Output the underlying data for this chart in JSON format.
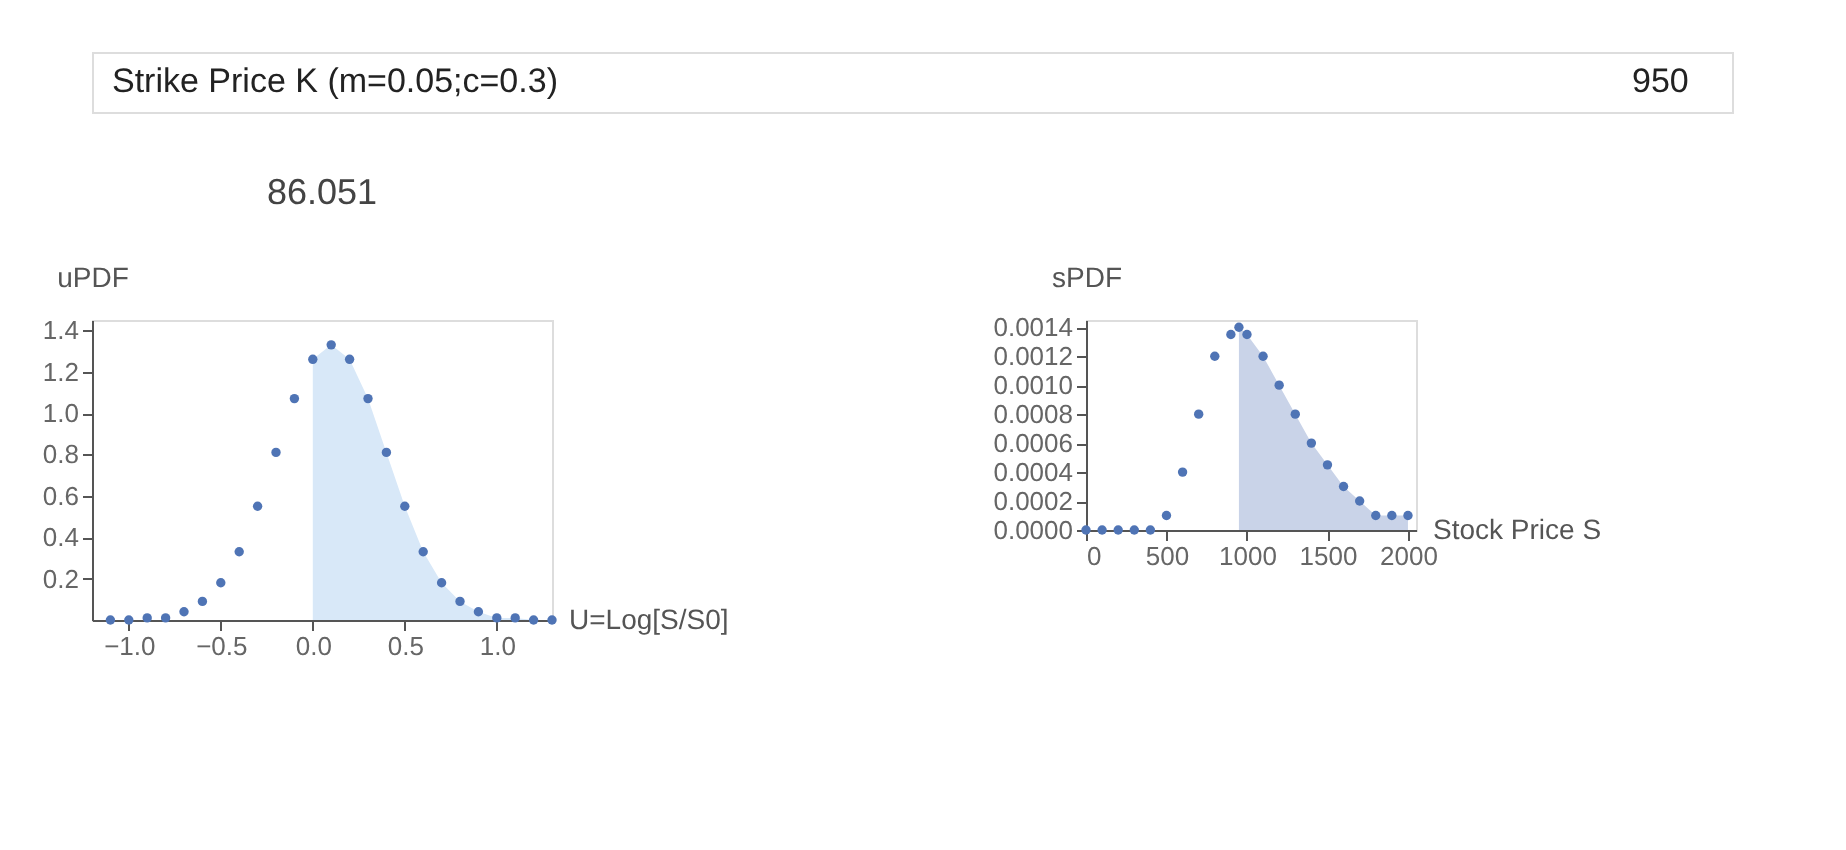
{
  "chart_data": [
    {
      "type": "scatter",
      "title": "86.051",
      "xlabel": "U=Log[S/S0]",
      "ylabel": "uPDF",
      "annotations": [
        "Strike Price K (m=0.05;c=0.3)",
        "950"
      ],
      "grid": false,
      "legend": false,
      "xlim": [
        -1.2,
        1.3
      ],
      "ylim": [
        0,
        1.45
      ],
      "xticks": [
        {
          "value": -1,
          "label": "−1.0"
        },
        {
          "value": -0.5,
          "label": "−0.5"
        },
        {
          "value": 0,
          "label": "0.0"
        },
        0.5,
        {
          "value": 1,
          "label": "1.0"
        }
      ],
      "yticks": [
        0.2,
        0.4,
        0.6,
        0.8,
        {
          "value": 1,
          "label": "1.0"
        },
        1.2,
        1.4
      ],
      "series": [
        {
          "type": "area",
          "color": "#d8e8f8",
          "x": [
            0,
            0.1,
            0.2,
            0.3,
            0.4,
            0.5,
            0.6,
            0.7,
            0.8,
            0.9,
            1.0,
            1.1,
            1.2,
            1.3
          ],
          "values": [
            1.26,
            1.33,
            1.26,
            1.07,
            0.81,
            0.55,
            0.33,
            0.18,
            0.09,
            0.04,
            0.01,
            0.01,
            0,
            0
          ]
        },
        {
          "color": "#4f74b5",
          "marker": "circle",
          "x": [
            -1.1,
            -1.0,
            -0.9,
            -0.8,
            -0.7,
            -0.6,
            -0.5,
            -0.4,
            -0.3,
            -0.2,
            -0.1,
            0,
            0.1,
            0.2,
            0.3,
            0.4,
            0.5,
            0.6,
            0.7,
            0.8,
            0.9,
            1.0,
            1.1,
            1.2,
            1.3
          ],
          "values": [
            0,
            0,
            0.01,
            0.01,
            0.04,
            0.09,
            0.18,
            0.33,
            0.55,
            0.81,
            1.07,
            1.26,
            1.33,
            1.26,
            1.07,
            0.81,
            0.55,
            0.33,
            0.18,
            0.09,
            0.04,
            0.01,
            0.01,
            0,
            0
          ]
        }
      ]
    },
    {
      "type": "scatter",
      "xlabel": "Stock Price S",
      "ylabel": "sPDF",
      "grid": false,
      "legend": false,
      "xlim": [
        0,
        2050
      ],
      "ylim": [
        0,
        0.00145
      ],
      "xticks": [
        0,
        500,
        1000,
        1500,
        2000
      ],
      "yticks": [
        {
          "value": 0,
          "label": "0.0000"
        },
        0.0002,
        0.0004,
        0.0006,
        0.0008,
        {
          "value": 0.001,
          "label": "0.0010"
        },
        0.0012,
        0.0014
      ],
      "series": [
        {
          "type": "area",
          "color": "#c9d3e8",
          "x": [
            950,
            1000,
            1100,
            1200,
            1300,
            1400,
            1500,
            1600,
            1700,
            1800,
            1900,
            2000
          ],
          "values": [
            0.0014,
            0.00135,
            0.0012,
            0.001,
            0.0008,
            0.0006,
            0.00045,
            0.0003,
            0.0002,
            0.0001,
            0.0001,
            0.0001
          ]
        },
        {
          "color": "#4f74b5",
          "marker": "circle",
          "x": [
            0,
            100,
            200,
            300,
            400,
            500,
            600,
            700,
            800,
            900,
            950,
            1000,
            1100,
            1200,
            1300,
            1400,
            1500,
            1600,
            1700,
            1800,
            1900,
            2000
          ],
          "values": [
            0,
            0,
            0,
            0,
            0,
            0.0001,
            0.0004,
            0.0008,
            0.0012,
            0.00135,
            0.0014,
            0.00135,
            0.0012,
            0.001,
            0.0008,
            0.0006,
            0.00045,
            0.0003,
            0.0002,
            0.0001,
            0.0001,
            0.0001
          ]
        }
      ]
    }
  ]
}
